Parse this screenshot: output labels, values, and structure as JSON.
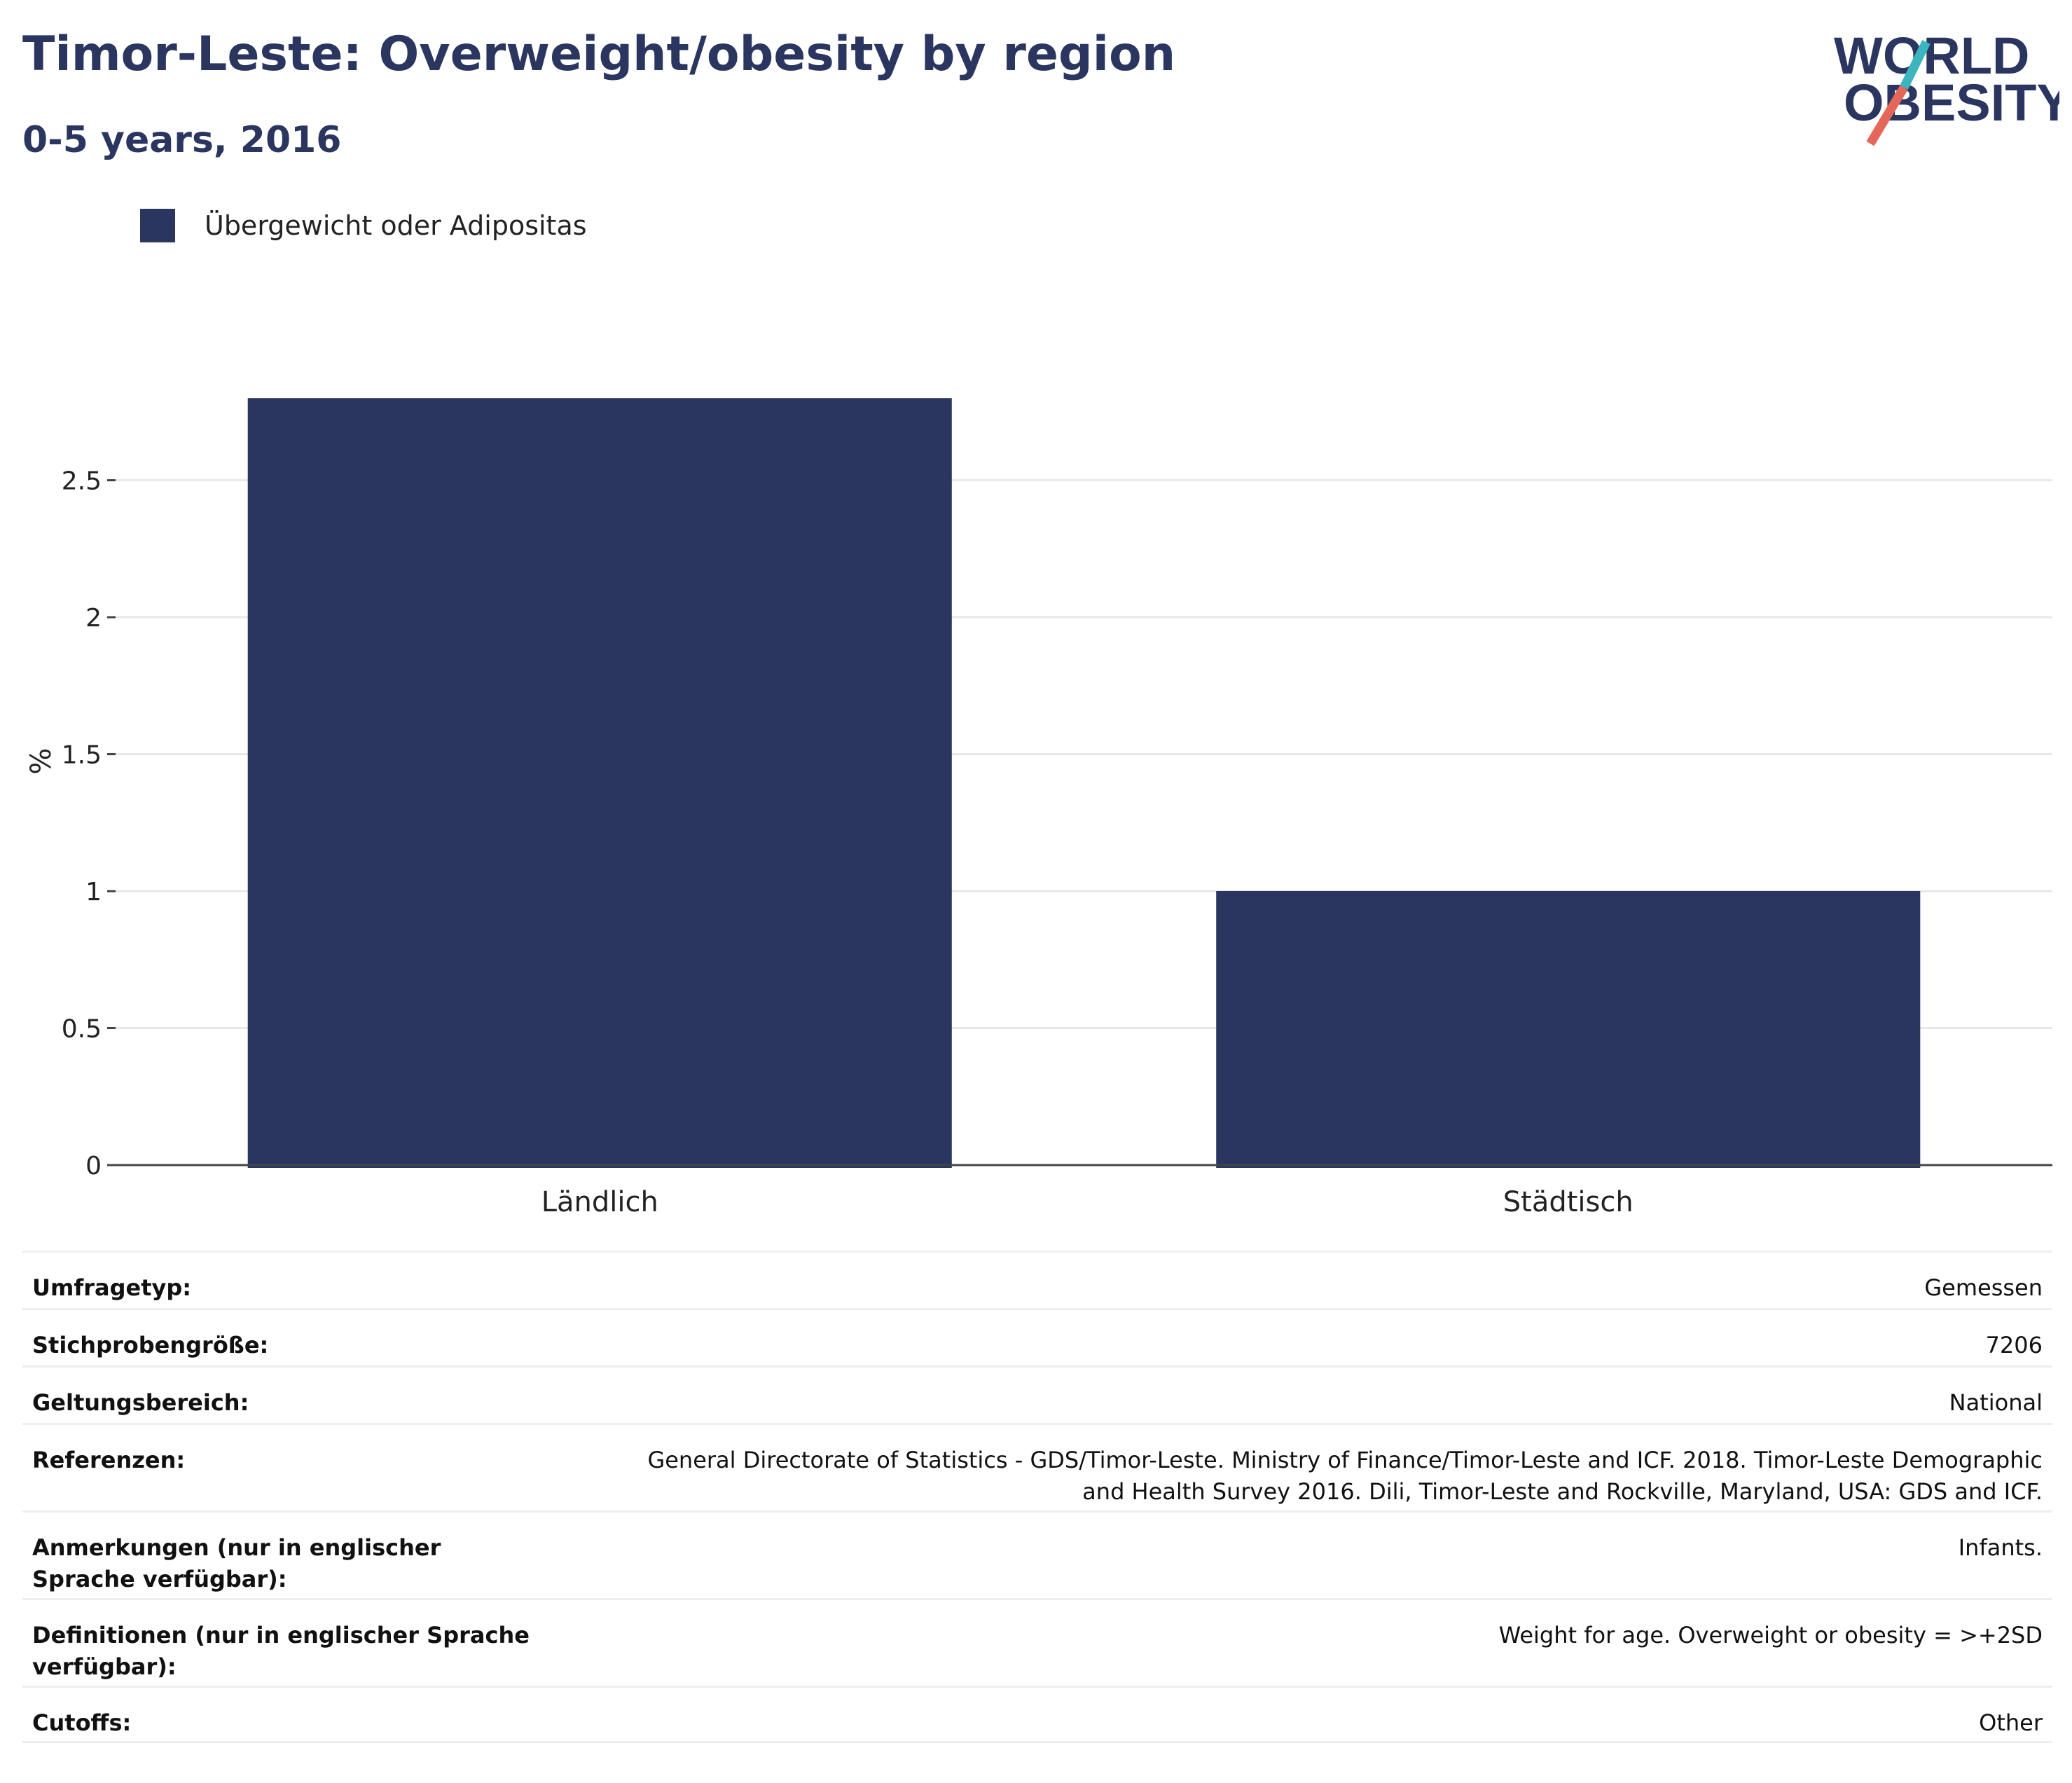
{
  "header": {
    "title": "Timor-Leste: Overweight/obesity by region",
    "subtitle": "0-5 years, 2016"
  },
  "logo": {
    "line1": "WORLD",
    "line2": "OBESITY",
    "colors": {
      "text": "#2b3660",
      "slash_top": "#3bb6be",
      "slash_bottom": "#e5675a"
    }
  },
  "legend": {
    "label": "Übergewicht oder Adipositas",
    "color": "#2b3660"
  },
  "chart_data": {
    "type": "bar",
    "categories": [
      "Ländlich",
      "Städtisch"
    ],
    "series": [
      {
        "name": "Übergewicht oder Adipositas",
        "values": [
          2.8,
          1.0
        ],
        "color": "#2b3660"
      }
    ],
    "ylabel": "%",
    "ylim": [
      0,
      3.0
    ],
    "yticks": [
      0,
      0.5,
      1,
      1.5,
      2,
      2.5
    ],
    "ytick_labels": [
      "0",
      "0.5",
      "1",
      "1.5",
      "2",
      "2.5"
    ],
    "grid": true,
    "legend_position": "top-left"
  },
  "info": [
    {
      "label": "Umfragetyp:",
      "value": "Gemessen"
    },
    {
      "label": "Stichprobengröße:",
      "value": "7206"
    },
    {
      "label": "Geltungsbereich:",
      "value": "National"
    },
    {
      "label": "Referenzen:",
      "value": "General Directorate of Statistics - GDS/Timor-Leste. Ministry of Finance/Timor-Leste and ICF. 2018. Timor-Leste Demographic and Health Survey 2016. Dili, Timor-Leste and Rockville, Maryland, USA: GDS and ICF."
    },
    {
      "label": "Anmerkungen (nur in englischer Sprache verfügbar):",
      "value": "Infants."
    },
    {
      "label": "Definitionen (nur in englischer Sprache verfügbar):",
      "value": "Weight for age. Overweight or obesity = >+2SD"
    },
    {
      "label": "Cutoffs:",
      "value": "Other"
    }
  ]
}
